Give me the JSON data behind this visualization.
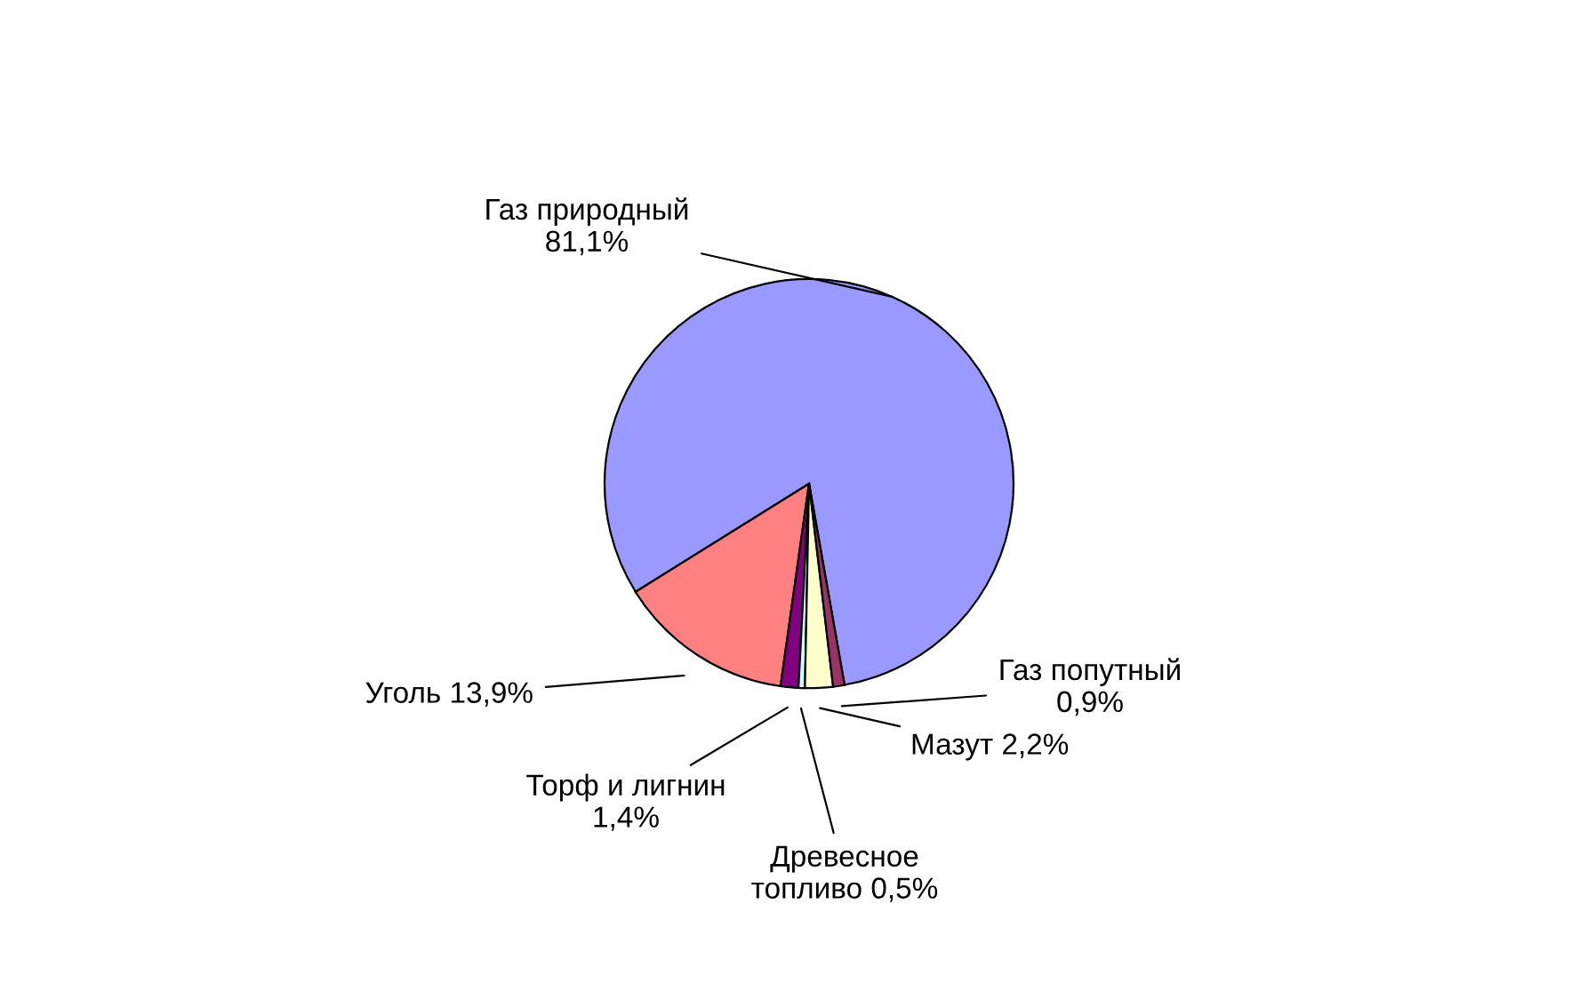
{
  "chart_data": {
    "type": "pie",
    "categories": [
      "Газ природный",
      "Уголь",
      "Торф и лигнин",
      "Древесное топливо",
      "Мазут",
      "Газ попутный"
    ],
    "values": [
      81.1,
      13.9,
      1.4,
      0.5,
      2.2,
      0.9
    ],
    "value_labels": [
      "81,1%",
      "13,9%",
      "1,4%",
      "0,5%",
      "2,2%",
      "0,9%"
    ],
    "colors": [
      "#9999ff",
      "#ff8080",
      "#800080",
      "#ccffff",
      "#ffffcc",
      "#993366"
    ],
    "legend": false
  }
}
